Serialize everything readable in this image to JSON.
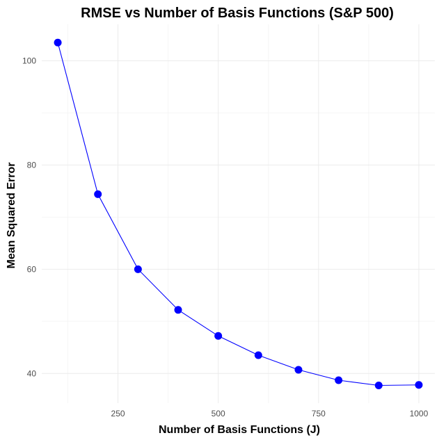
{
  "chart_data": {
    "type": "line",
    "title": "RMSE vs Number of Basis Functions (S&P 500)",
    "xlabel": "Number of Basis Functions (J)",
    "ylabel": "Mean Squared Error",
    "x": [
      100,
      200,
      300,
      400,
      500,
      600,
      700,
      800,
      900,
      1000
    ],
    "series": [
      {
        "values": [
          103.5,
          74.4,
          60.0,
          52.2,
          47.2,
          43.5,
          40.7,
          38.7,
          37.7,
          37.8
        ]
      }
    ],
    "xlim": [
      60,
      1040
    ],
    "ylim": [
      34.3,
      107.0
    ],
    "x_ticks": [
      250,
      500,
      750,
      1000
    ],
    "y_ticks": [
      40,
      60,
      80,
      100
    ],
    "grid": true,
    "marker": "circle",
    "colors": {
      "line": "#0000FF",
      "marker": "#0000FF",
      "grid": "#EBEBEB"
    }
  }
}
